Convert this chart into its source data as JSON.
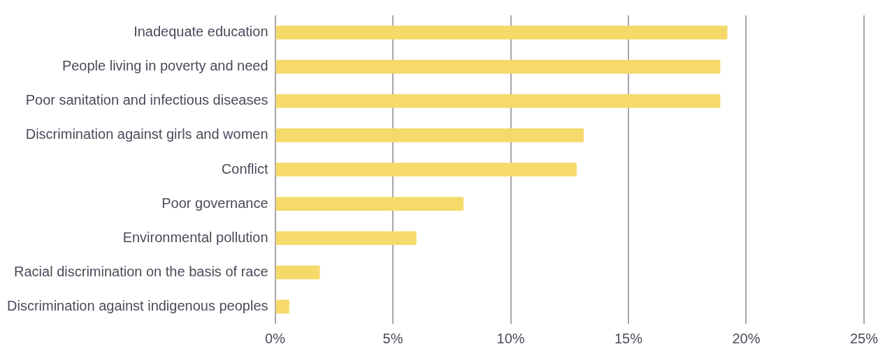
{
  "chart_data": {
    "type": "bar",
    "orientation": "horizontal",
    "categories": [
      "Inadequate education",
      "People living in poverty and need",
      "Poor sanitation and infectious diseases",
      "Discrimination against girls and women",
      "Conflict",
      "Poor governance",
      "Environmental pollution",
      "Racial discrimination on the basis of race",
      "Discrimination against indigenous peoples"
    ],
    "values": [
      19.2,
      18.9,
      18.9,
      13.1,
      12.8,
      8.0,
      6.0,
      1.9,
      0.6
    ],
    "color": "#f5da6a",
    "xlim": [
      0,
      25
    ],
    "xticks": [
      {
        "value": 0,
        "label": "0%"
      },
      {
        "value": 5,
        "label": "5%"
      },
      {
        "value": 10,
        "label": "10%"
      },
      {
        "value": 15,
        "label": "15%"
      },
      {
        "value": 20,
        "label": "20%"
      },
      {
        "value": 25,
        "label": "25%"
      }
    ],
    "grid": "x"
  }
}
